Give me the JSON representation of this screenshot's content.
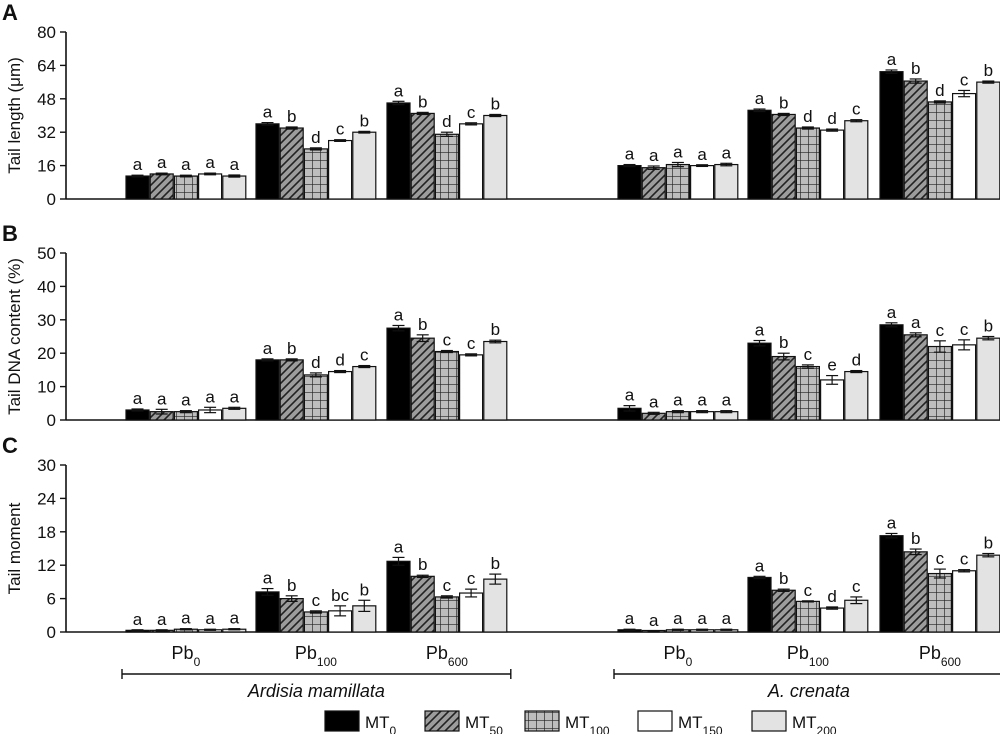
{
  "legend": [
    {
      "key": "MT0",
      "base": "MT",
      "sub": "0",
      "fill": "#000000",
      "pattern": "solid"
    },
    {
      "key": "MT50",
      "base": "MT",
      "sub": "50",
      "fill": "#9c9c9c",
      "pattern": "diagonal"
    },
    {
      "key": "MT100",
      "base": "MT",
      "sub": "100",
      "fill": "#bdbdbd",
      "pattern": "grid"
    },
    {
      "key": "MT150",
      "base": "MT",
      "sub": "150",
      "fill": "#ffffff",
      "pattern": "solid"
    },
    {
      "key": "MT200",
      "base": "MT",
      "sub": "200",
      "fill": "#e3e3e3",
      "pattern": "solid"
    }
  ],
  "groups": [
    {
      "species": "Ardisia mamillata",
      "treatments": [
        {
          "base": "Pb",
          "sub": "0"
        },
        {
          "base": "Pb",
          "sub": "100"
        },
        {
          "base": "Pb",
          "sub": "600"
        }
      ]
    },
    {
      "species": "A. crenata",
      "treatments": [
        {
          "base": "Pb",
          "sub": "0"
        },
        {
          "base": "Pb",
          "sub": "100"
        },
        {
          "base": "Pb",
          "sub": "600"
        }
      ]
    }
  ],
  "chart_data": [
    {
      "panel": "A",
      "type": "bar",
      "ylabel": "Tail length (μm)",
      "ylim": [
        0,
        80
      ],
      "yticks": [
        0,
        16,
        32,
        48,
        64,
        80
      ],
      "categories": [
        "Ardisia mamillata Pb0",
        "Ardisia mamillata Pb100",
        "Ardisia mamillata Pb600",
        "A. crenata Pb0",
        "A. crenata Pb100",
        "A. crenata Pb600"
      ],
      "series": [
        {
          "name": "MT0",
          "values": [
            11.0,
            36.0,
            46.0,
            16.0,
            42.5,
            61.0
          ],
          "err": [
            0.4,
            0.6,
            0.8,
            0.5,
            0.6,
            0.8
          ],
          "labels": [
            "a",
            "a",
            "a",
            "a",
            "a",
            "a"
          ]
        },
        {
          "name": "MT50",
          "values": [
            12.0,
            34.0,
            41.0,
            15.0,
            40.5,
            56.5
          ],
          "err": [
            0.4,
            0.5,
            0.5,
            0.8,
            0.5,
            1.0
          ],
          "labels": [
            "a",
            "b",
            "b",
            "a",
            "b",
            "b"
          ]
        },
        {
          "name": "MT100",
          "values": [
            11.0,
            24.0,
            31.0,
            16.5,
            34.0,
            46.5
          ],
          "err": [
            0.4,
            0.5,
            1.0,
            1.0,
            0.5,
            0.5
          ],
          "labels": [
            "a",
            "d",
            "d",
            "a",
            "d",
            "d"
          ]
        },
        {
          "name": "MT150",
          "values": [
            12.0,
            28.0,
            36.0,
            16.0,
            33.0,
            50.5
          ],
          "err": [
            0.4,
            0.4,
            0.5,
            0.4,
            0.5,
            1.5
          ],
          "labels": [
            "a",
            "c",
            "c",
            "a",
            "d",
            "c"
          ]
        },
        {
          "name": "MT200",
          "values": [
            11.0,
            32.0,
            40.0,
            16.5,
            37.5,
            56.0
          ],
          "err": [
            0.5,
            0.4,
            0.5,
            0.6,
            0.5,
            0.5
          ],
          "labels": [
            "a",
            "b",
            "b",
            "a",
            "c",
            "b"
          ]
        }
      ]
    },
    {
      "panel": "B",
      "type": "bar",
      "ylabel": "Tail DNA content (%)",
      "ylim": [
        0,
        50
      ],
      "yticks": [
        0,
        10,
        20,
        30,
        40,
        50
      ],
      "categories": [
        "Ardisia mamillata Pb0",
        "Ardisia mamillata Pb100",
        "Ardisia mamillata Pb600",
        "A. crenata Pb0",
        "A. crenata Pb100",
        "A. crenata Pb600"
      ],
      "series": [
        {
          "name": "MT0",
          "values": [
            3.0,
            18.0,
            27.5,
            3.5,
            23.0,
            28.5
          ],
          "err": [
            0.3,
            0.3,
            0.8,
            0.8,
            0.8,
            0.6
          ],
          "labels": [
            "a",
            "a",
            "a",
            "a",
            "a",
            "a"
          ]
        },
        {
          "name": "MT50",
          "values": [
            2.5,
            18.0,
            24.5,
            2.0,
            19.0,
            25.5
          ],
          "err": [
            0.7,
            0.3,
            1.0,
            0.3,
            1.0,
            0.6
          ],
          "labels": [
            "a",
            "b",
            "b",
            "a",
            "b",
            "a"
          ]
        },
        {
          "name": "MT100",
          "values": [
            2.5,
            13.5,
            20.5,
            2.5,
            16.0,
            22.0
          ],
          "err": [
            0.3,
            0.6,
            0.3,
            0.3,
            0.5,
            1.7
          ],
          "labels": [
            "a",
            "d",
            "c",
            "a",
            "c",
            "c"
          ]
        },
        {
          "name": "MT150",
          "values": [
            3.0,
            14.5,
            19.5,
            2.5,
            12.0,
            22.5
          ],
          "err": [
            0.8,
            0.3,
            0.3,
            0.3,
            1.3,
            1.5
          ],
          "labels": [
            "a",
            "d",
            "c",
            "a",
            "e",
            "c"
          ]
        },
        {
          "name": "MT200",
          "values": [
            3.5,
            16.0,
            23.5,
            2.5,
            14.5,
            24.5
          ],
          "err": [
            0.3,
            0.3,
            0.4,
            0.3,
            0.3,
            0.5
          ],
          "labels": [
            "a",
            "c",
            "b",
            "a",
            "d",
            "b"
          ]
        }
      ]
    },
    {
      "panel": "C",
      "type": "bar",
      "ylabel": "Tail moment",
      "ylim": [
        0,
        30
      ],
      "yticks": [
        0,
        6,
        12,
        18,
        24,
        30
      ],
      "categories": [
        "Ardisia mamillata Pb0",
        "Ardisia mamillata Pb100",
        "Ardisia mamillata Pb600",
        "A. crenata Pb0",
        "A. crenata Pb100",
        "A. crenata Pb600"
      ],
      "series": [
        {
          "name": "MT0",
          "values": [
            0.3,
            7.2,
            12.7,
            0.4,
            9.8,
            17.3
          ],
          "err": [
            0.1,
            0.6,
            0.7,
            0.1,
            0.2,
            0.4
          ],
          "labels": [
            "a",
            "a",
            "a",
            "a",
            "a",
            "a"
          ]
        },
        {
          "name": "MT50",
          "values": [
            0.3,
            6.0,
            10.0,
            0.1,
            7.5,
            14.4
          ],
          "err": [
            0.1,
            0.5,
            0.2,
            0.1,
            0.2,
            0.5
          ],
          "labels": [
            "a",
            "b",
            "b",
            "a",
            "b",
            "b"
          ]
        },
        {
          "name": "MT100",
          "values": [
            0.5,
            3.6,
            6.3,
            0.4,
            5.5,
            10.5
          ],
          "err": [
            0.1,
            0.2,
            0.2,
            0.1,
            0.1,
            0.8
          ],
          "labels": [
            "a",
            "c",
            "c",
            "a",
            "c",
            "c"
          ]
        },
        {
          "name": "MT150",
          "values": [
            0.4,
            3.8,
            7.0,
            0.4,
            4.3,
            11.0
          ],
          "err": [
            0.1,
            0.9,
            0.7,
            0.1,
            0.2,
            0.2
          ],
          "labels": [
            "a",
            "bc",
            "c",
            "a",
            "d",
            "c"
          ]
        },
        {
          "name": "MT200",
          "values": [
            0.5,
            4.7,
            9.5,
            0.4,
            5.7,
            13.8
          ],
          "err": [
            0.1,
            1.0,
            0.9,
            0.1,
            0.6,
            0.3
          ],
          "labels": [
            "a",
            "b",
            "b",
            "a",
            "c",
            "b"
          ]
        }
      ]
    }
  ]
}
